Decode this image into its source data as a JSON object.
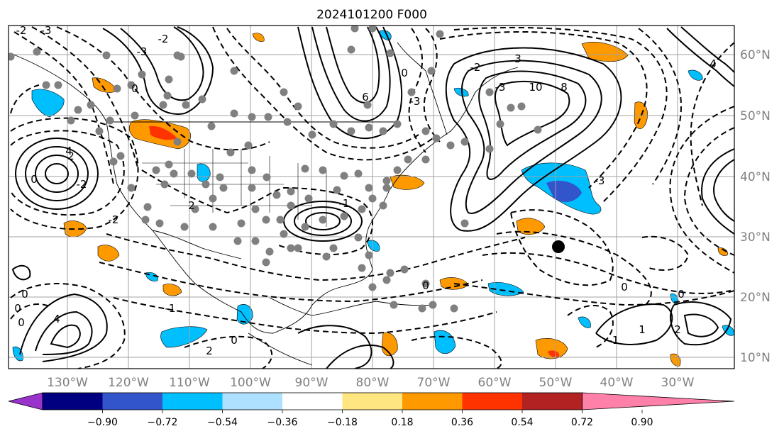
{
  "title": "2024101200 F000",
  "map": {
    "lon_range": [
      -138,
      -16
    ],
    "lat_range": [
      8,
      65
    ],
    "longitude_labels": [
      "130°W",
      "120°W",
      "110°W",
      "100°W",
      "90°W",
      "80°W",
      "70°W",
      "60°W",
      "50°W",
      "40°W",
      "30°W"
    ],
    "latitude_labels": [
      "60°N",
      "50°N",
      "40°N",
      "30°N",
      "20°N",
      "10°N"
    ],
    "gridline_color": "#a0a0a0",
    "contour_labels": [
      "-3",
      "4",
      "0",
      "-2",
      "0",
      "6",
      "-3",
      "0",
      "-2",
      "2",
      "-1",
      "0",
      "0",
      "4",
      "0",
      "3",
      "-3",
      "0",
      "2",
      "-2",
      "10",
      "8",
      "-3",
      "-1",
      "-2",
      "-3",
      "4",
      "0",
      "2",
      "1",
      "0",
      "-2",
      "2",
      "-1",
      "0"
    ],
    "marked_center": "black-dot",
    "stations_color": "#808080"
  },
  "colorbar": {
    "ticks": [
      "−0.90",
      "−0.72",
      "−0.54",
      "−0.36",
      "−0.18",
      "0.18",
      "0.36",
      "0.54",
      "0.72",
      "0.90"
    ],
    "colors": [
      "#9933cc",
      "#000080",
      "#3355cc",
      "#00bfff",
      "#aee0ff",
      "#ffffff",
      "#ffe680",
      "#ff9900",
      "#ff3300",
      "#b22222",
      "#ff80a8"
    ],
    "extend": "both"
  }
}
